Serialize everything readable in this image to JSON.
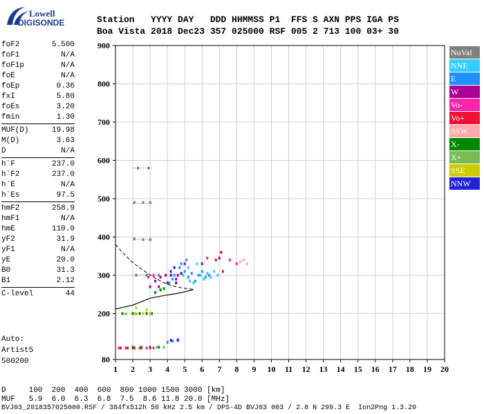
{
  "logo": {
    "line1": "Lowell",
    "line2": "DIGISONDE"
  },
  "header": {
    "labels": "Station   YYYY DAY   DDD HHMMSS P1  FFS S AXN PPS IGA PS",
    "values": "Boa Vista 2018 Dec23 357 025000 RSF 005 2 713 100 03+ 30"
  },
  "params": [
    {
      "group": [
        {
          "k": "foF2",
          "v": "5.500"
        },
        {
          "k": "foF1",
          "v": "N/A"
        },
        {
          "k": "foF1p",
          "v": "N/A"
        },
        {
          "k": "foE",
          "v": "N/A"
        },
        {
          "k": "foEp",
          "v": "0.36"
        },
        {
          "k": "fxI",
          "v": "5.80"
        },
        {
          "k": "foEs",
          "v": "3.20"
        },
        {
          "k": "fmin",
          "v": "1.30"
        }
      ]
    },
    {
      "group": [
        {
          "k": "MUF(D)",
          "v": "19.98"
        },
        {
          "k": "M(D)",
          "v": "3.63"
        },
        {
          "k": "D",
          "v": "N/A"
        }
      ]
    },
    {
      "group": [
        {
          "k": "h`F",
          "v": "237.0"
        },
        {
          "k": "h`F2",
          "v": "237.0"
        },
        {
          "k": "h`E",
          "v": "N/A"
        },
        {
          "k": "h`Es",
          "v": "97.5"
        }
      ]
    },
    {
      "group": [
        {
          "k": "hmF2",
          "v": "258.9"
        },
        {
          "k": "hmF1",
          "v": "N/A"
        },
        {
          "k": "hmE",
          "v": "110.0"
        },
        {
          "k": "yF2",
          "v": "31.9"
        },
        {
          "k": "yF1",
          "v": "N/A"
        },
        {
          "k": "yE",
          "v": "20.0"
        },
        {
          "k": "B0",
          "v": "31.3"
        },
        {
          "k": "B1",
          "v": "2.12"
        }
      ]
    },
    {
      "group": [
        {
          "k": "C-level",
          "v": "44"
        }
      ]
    }
  ],
  "auto": {
    "line1": "Auto:",
    "line2": "Artist5",
    "line3": "500200"
  },
  "legend": [
    {
      "label": "NoVal",
      "color": "#808080"
    },
    {
      "label": "NNE",
      "color": "#33ccff"
    },
    {
      "label": "E",
      "color": "#1e90ff"
    },
    {
      "label": "W",
      "color": "#aa0099"
    },
    {
      "label": "Vo-",
      "color": "#ff22aa"
    },
    {
      "label": "Vo+",
      "color": "#ee1133"
    },
    {
      "label": "SSW",
      "color": "#ffaaaa"
    },
    {
      "label": "X-",
      "color": "#008800"
    },
    {
      "label": "X+",
      "color": "#77bb55"
    },
    {
      "label": "SSE",
      "color": "#cccc00"
    },
    {
      "label": "NNW",
      "color": "#2222dd"
    }
  ],
  "footer": {
    "line1": "D     100  200  400  600  800 1000 1500 3000 [km]",
    "line2": "MUF   5.9  6.0  6.3  6.8  7.5  8.6 11.8 20.0 [MHz]",
    "line3": "BVJ03_2018357025000.RSF / 384fx512h 50 kHz 2.5 km / DPS-4D BVJ03 003 / 2.8 N 299.3 E  Ion2Png 1.3.20"
  },
  "chart_data": {
    "type": "scatter",
    "xlim": [
      1,
      20
    ],
    "ylim": [
      80,
      900
    ],
    "xticks": [
      1,
      2,
      3,
      4,
      5,
      6,
      7,
      8,
      9,
      10,
      11,
      12,
      13,
      14,
      15,
      16,
      17,
      18,
      19,
      20
    ],
    "yticks": [
      80,
      200,
      300,
      400,
      500,
      600,
      700,
      800,
      900
    ],
    "grid": true,
    "series": [
      {
        "name": "E",
        "color": "#1e90ff",
        "points": [
          [
            4.1,
            280
          ],
          [
            4.4,
            300
          ],
          [
            4.7,
            320
          ],
          [
            5.0,
            310
          ],
          [
            5.2,
            295
          ],
          [
            5.4,
            305
          ],
          [
            5.6,
            285
          ],
          [
            5.8,
            300
          ],
          [
            6.0,
            310
          ],
          [
            6.2,
            295
          ],
          [
            6.4,
            300
          ],
          [
            4.8,
            330
          ],
          [
            5.1,
            340
          ],
          [
            4.3,
            290
          ],
          [
            4.0,
            125
          ],
          [
            4.3,
            128
          ],
          [
            4.6,
            132
          ]
        ]
      },
      {
        "name": "NNE",
        "color": "#33ccff",
        "points": [
          [
            5.5,
            280
          ],
          [
            5.9,
            300
          ],
          [
            6.3,
            305
          ],
          [
            6.7,
            310
          ],
          [
            5.2,
            320
          ],
          [
            5.7,
            330
          ],
          [
            6.1,
            290
          ],
          [
            6.5,
            295
          ],
          [
            4.9,
            300
          ],
          [
            5.3,
            285
          ],
          [
            6.9,
            300
          ]
        ]
      },
      {
        "name": "W",
        "color": "#aa0099",
        "points": [
          [
            3.0,
            270
          ],
          [
            3.3,
            285
          ],
          [
            3.6,
            295
          ],
          [
            3.9,
            300
          ],
          [
            4.2,
            310
          ],
          [
            4.5,
            290
          ],
          [
            3.5,
            270
          ],
          [
            4.0,
            280
          ],
          [
            4.6,
            300
          ],
          [
            5.0,
            330
          ],
          [
            6.0,
            330
          ],
          [
            7.0,
            345
          ],
          [
            7.1,
            360
          ]
        ]
      },
      {
        "name": "Vo-",
        "color": "#ff22aa",
        "points": [
          [
            1.2,
            110
          ],
          [
            1.6,
            110
          ],
          [
            2.0,
            110
          ],
          [
            2.4,
            110
          ],
          [
            2.8,
            110
          ],
          [
            3.2,
            110
          ],
          [
            2.9,
            295
          ],
          [
            3.2,
            300
          ],
          [
            6.3,
            345
          ],
          [
            8.0,
            330
          ],
          [
            7.6,
            340
          ]
        ]
      },
      {
        "name": "Vo+",
        "color": "#ee1133",
        "points": [
          [
            1.3,
            110
          ],
          [
            1.7,
            110
          ],
          [
            2.1,
            110
          ],
          [
            2.5,
            110
          ],
          [
            3.0,
            110
          ],
          [
            6.8,
            340
          ],
          [
            7.2,
            310
          ]
        ]
      },
      {
        "name": "SSW",
        "color": "#ffaaaa",
        "points": [
          [
            8.2,
            335
          ],
          [
            8.4,
            340
          ],
          [
            8.6,
            330
          ]
        ]
      },
      {
        "name": "X-",
        "color": "#008800",
        "points": [
          [
            2.0,
            200
          ],
          [
            2.4,
            200
          ],
          [
            2.8,
            200
          ],
          [
            3.1,
            200
          ],
          [
            3.3,
            255
          ],
          [
            3.6,
            262
          ],
          [
            3.8,
            265
          ],
          [
            1.4,
            200
          ],
          [
            2.0,
            112
          ],
          [
            2.5,
            112
          ],
          [
            3.0,
            112
          ],
          [
            3.5,
            112
          ]
        ]
      },
      {
        "name": "X+",
        "color": "#77bb55",
        "points": [
          [
            1.6,
            199
          ],
          [
            2.2,
            199
          ],
          [
            3.0,
            199
          ],
          [
            3.4,
            112
          ],
          [
            3.8,
            112
          ]
        ]
      },
      {
        "name": "SSE",
        "color": "#cccc00",
        "points": [
          [
            2.1,
            200
          ],
          [
            2.6,
            200
          ],
          [
            3.0,
            200
          ],
          [
            2.2,
            215
          ],
          [
            2.8,
            210
          ]
        ]
      },
      {
        "name": "NNW",
        "color": "#2222dd",
        "points": [
          [
            4.2,
            130
          ],
          [
            4.6,
            130
          ],
          [
            4.2,
            300
          ],
          [
            4.5,
            280
          ],
          [
            4.8,
            305
          ],
          [
            4.4,
            320
          ]
        ]
      },
      {
        "name": "NoVal",
        "color": "#808080",
        "points": [
          [
            2.2,
            300
          ],
          [
            2.8,
            300
          ],
          [
            2.1,
            395
          ],
          [
            2.6,
            393
          ],
          [
            3.0,
            393
          ],
          [
            2.1,
            490
          ],
          [
            2.6,
            490
          ],
          [
            3.0,
            490
          ],
          [
            2.3,
            580
          ],
          [
            2.9,
            580
          ],
          [
            3.5,
            300
          ]
        ]
      }
    ],
    "profile_solid": [
      [
        1.0,
        212
      ],
      [
        2.0,
        222
      ],
      [
        3.0,
        240
      ],
      [
        3.8,
        247
      ],
      [
        4.5,
        252
      ],
      [
        5.0,
        257
      ],
      [
        5.4,
        261
      ],
      [
        5.5,
        263
      ]
    ],
    "profile_dashed": [
      [
        1.0,
        380
      ],
      [
        1.5,
        355
      ],
      [
        2.0,
        333
      ],
      [
        2.5,
        316
      ],
      [
        3.0,
        301
      ],
      [
        3.5,
        287
      ],
      [
        4.0,
        276
      ],
      [
        4.5,
        270
      ],
      [
        5.0,
        266
      ],
      [
        5.5,
        263
      ]
    ],
    "dotted_lines": [
      [
        2.0,
        300,
        3.5,
        300
      ],
      [
        2.0,
        393,
        3.2,
        393
      ],
      [
        2.0,
        488,
        3.2,
        488
      ],
      [
        2.0,
        580,
        3.2,
        580
      ]
    ]
  }
}
